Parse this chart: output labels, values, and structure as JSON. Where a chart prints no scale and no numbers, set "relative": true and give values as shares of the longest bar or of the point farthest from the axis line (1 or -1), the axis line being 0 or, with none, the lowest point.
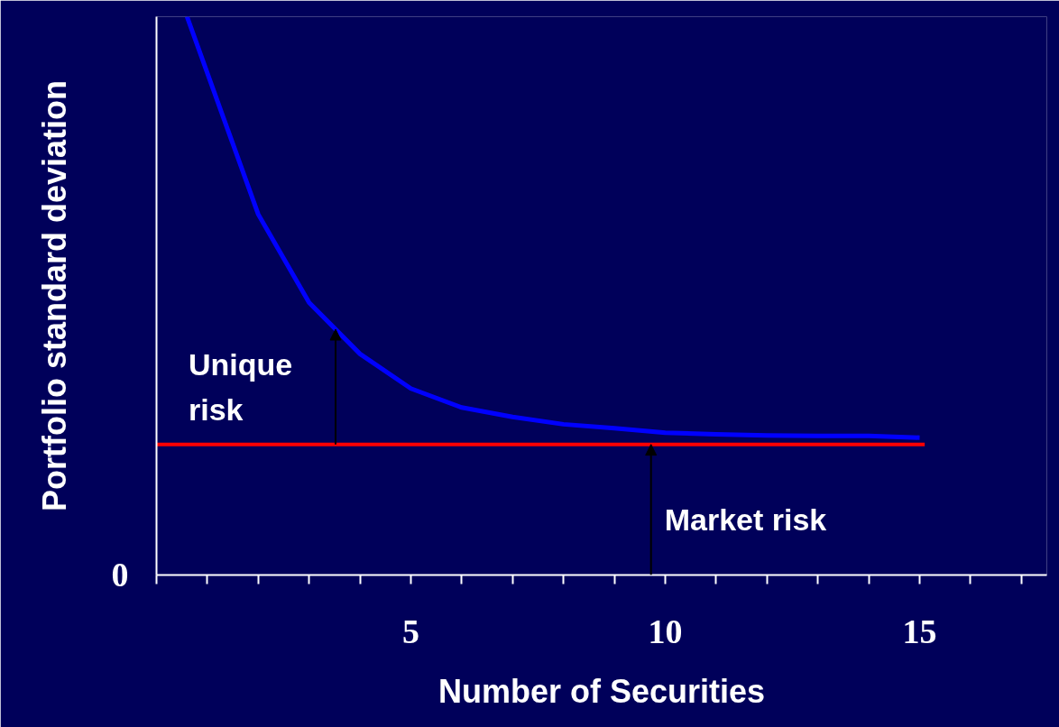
{
  "chart_data": {
    "type": "line",
    "relative": true,
    "xlabel": "Number of Securities",
    "ylabel": "Portfolio standard deviation",
    "x": [
      0.6,
      2,
      3,
      4,
      5,
      6,
      7,
      8,
      9,
      10,
      11,
      12,
      13,
      14,
      15
    ],
    "series": [
      {
        "color": "#0000ff",
        "values": [
          1,
          0.646,
          0.488,
          0.396,
          0.334,
          0.3,
          0.283,
          0.27,
          0.263,
          0.255,
          0.252,
          0.25,
          0.249,
          0.249,
          0.246
        ]
      }
    ],
    "xlim": [
      0,
      17.5
    ],
    "xticks": [
      {
        "value": 0,
        "label": null
      },
      {
        "value": 1,
        "label": null
      },
      {
        "value": 2,
        "label": null
      },
      {
        "value": 3,
        "label": null
      },
      {
        "value": 4,
        "label": null
      },
      5,
      {
        "value": 6,
        "label": null
      },
      {
        "value": 7,
        "label": null
      },
      {
        "value": 8,
        "label": null
      },
      {
        "value": 9,
        "label": null
      },
      10,
      {
        "value": 11,
        "label": null
      },
      {
        "value": 12,
        "label": null
      },
      {
        "value": 13,
        "label": null
      },
      {
        "value": 14,
        "label": null
      },
      15,
      {
        "value": 16,
        "label": null
      },
      {
        "value": 17,
        "label": null
      }
    ],
    "ref_lines": [
      {
        "axis": "y",
        "value": 0.234,
        "color": "#ff0000"
      }
    ],
    "annotations": [
      "Unique\nrisk",
      "Market risk",
      "0"
    ],
    "grid": false,
    "marker": "none",
    "line_style": "solid"
  }
}
